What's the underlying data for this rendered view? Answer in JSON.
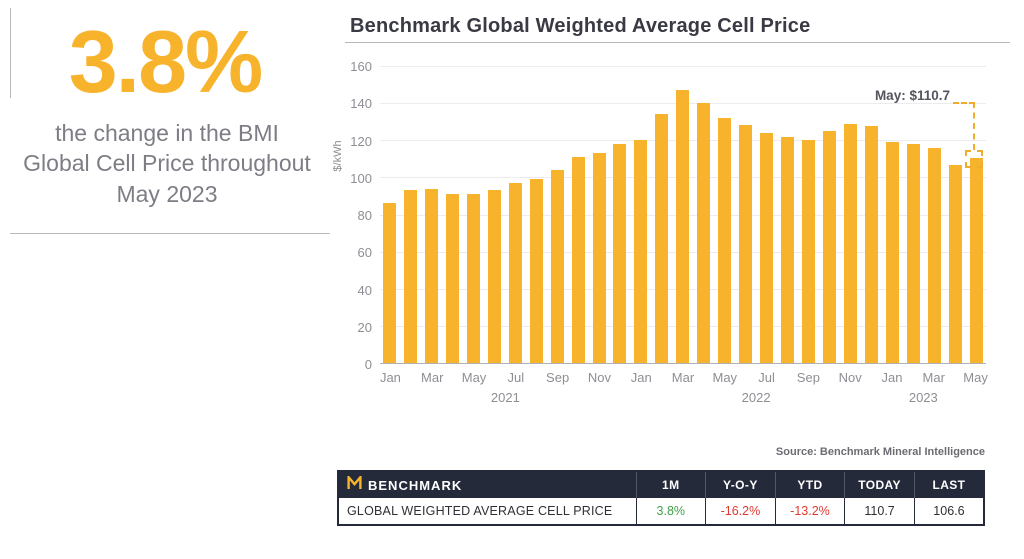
{
  "stat": {
    "value": "3.8%",
    "description": "the change in the BMI Global Cell Price throughout May 2023"
  },
  "chart_data": {
    "type": "bar",
    "title": "Benchmark Global Weighted Average Cell Price",
    "ylabel": "$/kWh",
    "ylim": [
      0,
      160
    ],
    "yticks": [
      0,
      20,
      40,
      60,
      80,
      100,
      120,
      140,
      160
    ],
    "x": [
      "Jan 2021",
      "Feb 2021",
      "Mar 2021",
      "Apr 2021",
      "May 2021",
      "Jun 2021",
      "Jul 2021",
      "Aug 2021",
      "Sep 2021",
      "Oct 2021",
      "Nov 2021",
      "Dec 2021",
      "Jan 2022",
      "Feb 2022",
      "Mar 2022",
      "Apr 2022",
      "May 2022",
      "Jun 2022",
      "Jul 2022",
      "Aug 2022",
      "Sep 2022",
      "Oct 2022",
      "Nov 2022",
      "Dec 2022",
      "Jan 2023",
      "Feb 2023",
      "Mar 2023",
      "Apr 2023",
      "May 2023"
    ],
    "values": [
      86,
      93,
      94,
      91,
      91,
      93,
      97,
      99,
      104,
      111,
      113,
      118,
      120,
      134,
      147,
      140,
      132.1,
      128,
      124,
      122,
      120,
      125,
      129,
      127.5,
      119,
      118,
      116,
      106.6,
      110.7
    ],
    "xtick_labels": [
      "Jan",
      "Mar",
      "May",
      "Jul",
      "Sep",
      "Nov",
      "Jan",
      "Mar",
      "May",
      "Jul",
      "Sep",
      "Nov",
      "Jan",
      "Mar",
      "May"
    ],
    "year_labels": [
      "2021",
      "2022",
      "2023"
    ],
    "bar_color": "#F7B32B",
    "grid": true,
    "annotation": {
      "text": "May: $110.7",
      "target": "May 2023"
    }
  },
  "source": "Source: Benchmark Mineral Intelligence",
  "table": {
    "brand": "BENCHMARK",
    "headers": [
      "1M",
      "Y-O-Y",
      "YTD",
      "TODAY",
      "LAST"
    ],
    "row": {
      "label": "GLOBAL WEIGHTED AVERAGE CELL PRICE",
      "values": [
        "3.8%",
        "-16.2%",
        "-13.2%",
        "110.7",
        "106.6"
      ]
    }
  },
  "colors": {
    "accent_gold": "#F7B32B",
    "header_navy": "#252A3B",
    "positive_green": "#3FA047",
    "negative_red": "#E03A30"
  }
}
